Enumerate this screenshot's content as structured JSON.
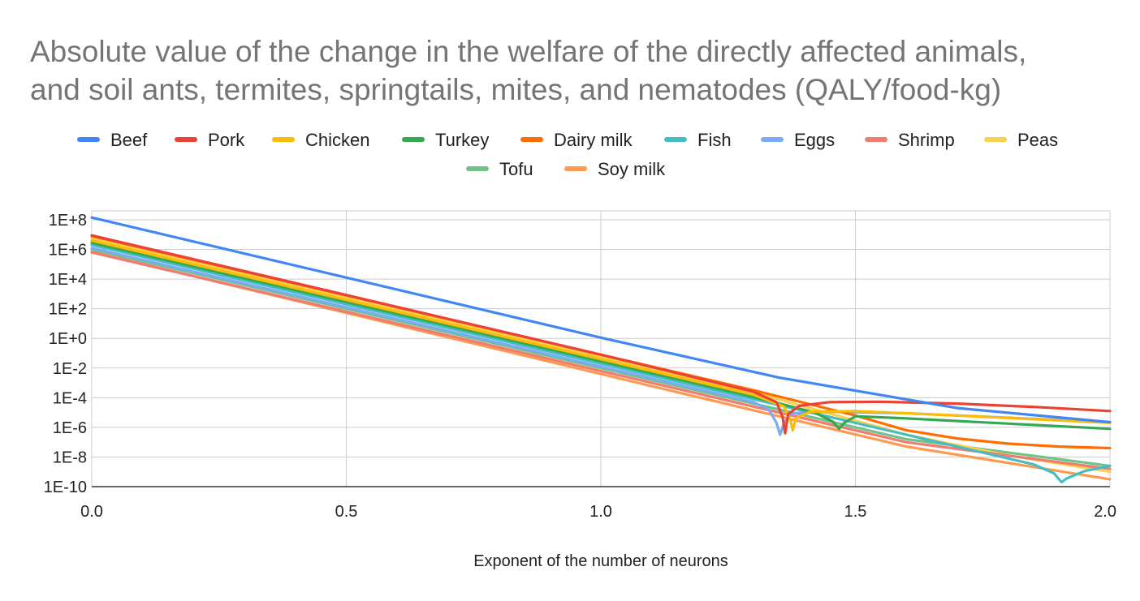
{
  "chart_data": {
    "type": "line",
    "title": "Absolute value of the change in the welfare of the directly affected animals, and soil ants, termites, springtails, mites, and nematodes (QALY/food-kg)",
    "title_lines": [
      "Absolute value of the change in the welfare of the directly affected animals,",
      "and soil ants, termites, springtails, mites, and nematodes (QALY/food-kg)"
    ],
    "xlabel": "Exponent of the number of neurons",
    "ylabel": "",
    "x_scale": "linear",
    "y_scale": "log10",
    "xlim": [
      0,
      2
    ],
    "ylim_log10": [
      -10,
      8.6
    ],
    "x_ticks": [
      0,
      0.5,
      1,
      1.5,
      2
    ],
    "x_tick_labels": [
      "0.0",
      "0.5",
      "1.0",
      "1.5",
      "2.0"
    ],
    "y_ticks_log10": [
      8,
      6,
      4,
      2,
      0,
      -2,
      -4,
      -6,
      -8,
      -10
    ],
    "y_tick_labels": [
      "1E+8",
      "1E+6",
      "1E+4",
      "1E+2",
      "1E+0",
      "1E-2",
      "1E-4",
      "1E-6",
      "1E-8",
      "1E-10"
    ],
    "grid": true,
    "legend_position": "top",
    "series": [
      {
        "name": "Beef",
        "color": "#4285F4",
        "points": [
          [
            0,
            8.15
          ],
          [
            1,
            0.05
          ],
          [
            1.35,
            -2.65
          ],
          [
            1.7,
            -4.7
          ],
          [
            2,
            -5.65
          ]
        ]
      },
      {
        "name": "Pork",
        "color": "#EA4335",
        "points": [
          [
            0,
            6.95
          ],
          [
            1,
            -1.1
          ],
          [
            1.3,
            -3.6
          ],
          [
            1.345,
            -4.3
          ],
          [
            1.357,
            -5.3
          ],
          [
            1.362,
            -6.4
          ],
          [
            1.368,
            -5.1
          ],
          [
            1.39,
            -4.55
          ],
          [
            1.45,
            -4.3
          ],
          [
            1.55,
            -4.27
          ],
          [
            1.7,
            -4.4
          ],
          [
            1.85,
            -4.62
          ],
          [
            2,
            -4.9
          ]
        ]
      },
      {
        "name": "Chicken",
        "color": "#FBBC04",
        "points": [
          [
            0,
            6.6
          ],
          [
            1,
            -1.4
          ],
          [
            1.3,
            -3.8
          ],
          [
            1.36,
            -4.6
          ],
          [
            1.372,
            -5.5
          ],
          [
            1.377,
            -6.2
          ],
          [
            1.383,
            -5.4
          ],
          [
            1.41,
            -4.95
          ],
          [
            1.5,
            -4.9
          ],
          [
            1.7,
            -5.2
          ],
          [
            2,
            -5.7
          ]
        ]
      },
      {
        "name": "Turkey",
        "color": "#34A853",
        "points": [
          [
            0,
            6.45
          ],
          [
            1,
            -1.55
          ],
          [
            1.3,
            -3.95
          ],
          [
            1.42,
            -5
          ],
          [
            1.455,
            -5.6
          ],
          [
            1.468,
            -6.1
          ],
          [
            1.478,
            -5.7
          ],
          [
            1.5,
            -5.25
          ],
          [
            1.6,
            -5.4
          ],
          [
            1.8,
            -5.75
          ],
          [
            2,
            -6.1
          ]
        ]
      },
      {
        "name": "Dairy milk",
        "color": "#FF6D01",
        "points": [
          [
            0,
            6.9
          ],
          [
            1,
            -1.1
          ],
          [
            1.3,
            -3.5
          ],
          [
            1.5,
            -5.2
          ],
          [
            1.6,
            -6.2
          ],
          [
            1.7,
            -6.75
          ],
          [
            1.8,
            -7.1
          ],
          [
            1.9,
            -7.3
          ],
          [
            2,
            -7.4
          ]
        ]
      },
      {
        "name": "Fish",
        "color": "#46BDC6",
        "points": [
          [
            0,
            6.3
          ],
          [
            1,
            -1.7
          ],
          [
            1.3,
            -4.1
          ],
          [
            1.6,
            -6.5
          ],
          [
            1.85,
            -8.5
          ],
          [
            1.89,
            -9.1
          ],
          [
            1.905,
            -9.7
          ],
          [
            1.915,
            -9.45
          ],
          [
            1.95,
            -8.95
          ],
          [
            2,
            -8.6
          ]
        ]
      },
      {
        "name": "Eggs",
        "color": "#7BAAF7",
        "points": [
          [
            0,
            6.1
          ],
          [
            1,
            -1.9
          ],
          [
            1.3,
            -4.3
          ],
          [
            1.33,
            -4.8
          ],
          [
            1.345,
            -5.7
          ],
          [
            1.352,
            -6.5
          ],
          [
            1.36,
            -5.7
          ],
          [
            1.375,
            -5.05
          ],
          [
            1.45,
            -4.95
          ],
          [
            1.6,
            -5.05
          ],
          [
            1.8,
            -5.35
          ],
          [
            2,
            -5.65
          ]
        ]
      },
      {
        "name": "Shrimp",
        "color": "#F07B72",
        "points": [
          [
            0,
            5.8
          ],
          [
            1,
            -2.2
          ],
          [
            1.3,
            -4.6
          ],
          [
            1.6,
            -7
          ],
          [
            2,
            -8.8
          ]
        ]
      },
      {
        "name": "Peas",
        "color": "#FCD04F",
        "points": [
          [
            0,
            6.75
          ],
          [
            1,
            -1.25
          ],
          [
            1.3,
            -3.65
          ],
          [
            1.6,
            -6.5
          ],
          [
            1.8,
            -7.9
          ],
          [
            2,
            -9
          ]
        ]
      },
      {
        "name": "Tofu",
        "color": "#71C287",
        "points": [
          [
            0,
            6
          ],
          [
            1,
            -2
          ],
          [
            1.3,
            -4.4
          ],
          [
            1.6,
            -6.8
          ],
          [
            2,
            -8.6
          ]
        ]
      },
      {
        "name": "Soy milk",
        "color": "#FF994D",
        "points": [
          [
            0,
            5.85
          ],
          [
            1,
            -2.4
          ],
          [
            1.3,
            -4.85
          ],
          [
            1.6,
            -7.3
          ],
          [
            2,
            -9.5
          ]
        ]
      }
    ]
  }
}
